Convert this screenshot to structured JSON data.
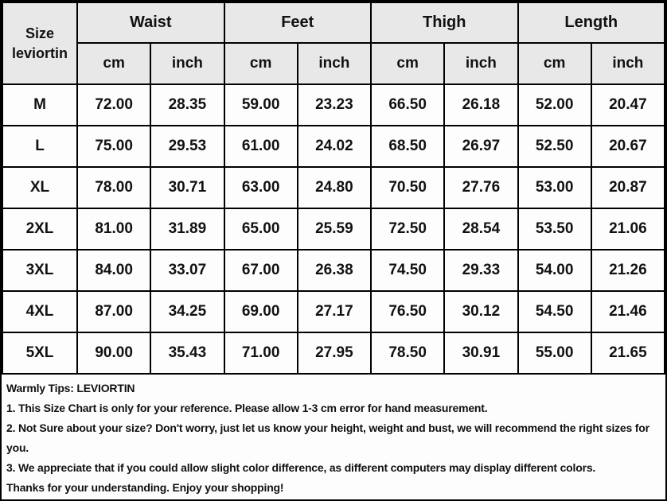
{
  "chart_data": {
    "type": "table",
    "corner_label": "Size leviortin",
    "column_groups": [
      "Waist",
      "Feet",
      "Thigh",
      "Length"
    ],
    "unit_row": [
      "cm",
      "inch",
      "cm",
      "inch",
      "cm",
      "inch",
      "cm",
      "inch"
    ],
    "rows": [
      {
        "size": "M",
        "values": [
          "72.00",
          "28.35",
          "59.00",
          "23.23",
          "66.50",
          "26.18",
          "52.00",
          "20.47"
        ]
      },
      {
        "size": "L",
        "values": [
          "75.00",
          "29.53",
          "61.00",
          "24.02",
          "68.50",
          "26.97",
          "52.50",
          "20.67"
        ]
      },
      {
        "size": "XL",
        "values": [
          "78.00",
          "30.71",
          "63.00",
          "24.80",
          "70.50",
          "27.76",
          "53.00",
          "20.87"
        ]
      },
      {
        "size": "2XL",
        "values": [
          "81.00",
          "31.89",
          "65.00",
          "25.59",
          "72.50",
          "28.54",
          "53.50",
          "21.06"
        ]
      },
      {
        "size": "3XL",
        "values": [
          "84.00",
          "33.07",
          "67.00",
          "26.38",
          "74.50",
          "29.33",
          "54.00",
          "21.26"
        ]
      },
      {
        "size": "4XL",
        "values": [
          "87.00",
          "34.25",
          "69.00",
          "27.17",
          "76.50",
          "30.12",
          "54.50",
          "21.46"
        ]
      },
      {
        "size": "5XL",
        "values": [
          "90.00",
          "35.43",
          "71.00",
          "27.95",
          "78.50",
          "30.91",
          "55.00",
          "21.65"
        ]
      }
    ]
  },
  "tips": {
    "lines": [
      "Warmly Tips: LEVIORTIN",
      "1. This Size Chart is only for your reference. Please allow 1-3 cm error for hand measurement.",
      "2. Not Sure about your size? Don't worry, just let us know your height, weight and bust, we will recommend the right sizes for you.",
      "3. We appreciate that if you could allow slight color difference, as different computers may display different colors.",
      "Thanks for your understanding. Enjoy your shopping!"
    ]
  },
  "colors": {
    "border": "#000000",
    "header_background": "#e8e8e8",
    "row_background": "#fdfdfd",
    "text": "#111111"
  }
}
